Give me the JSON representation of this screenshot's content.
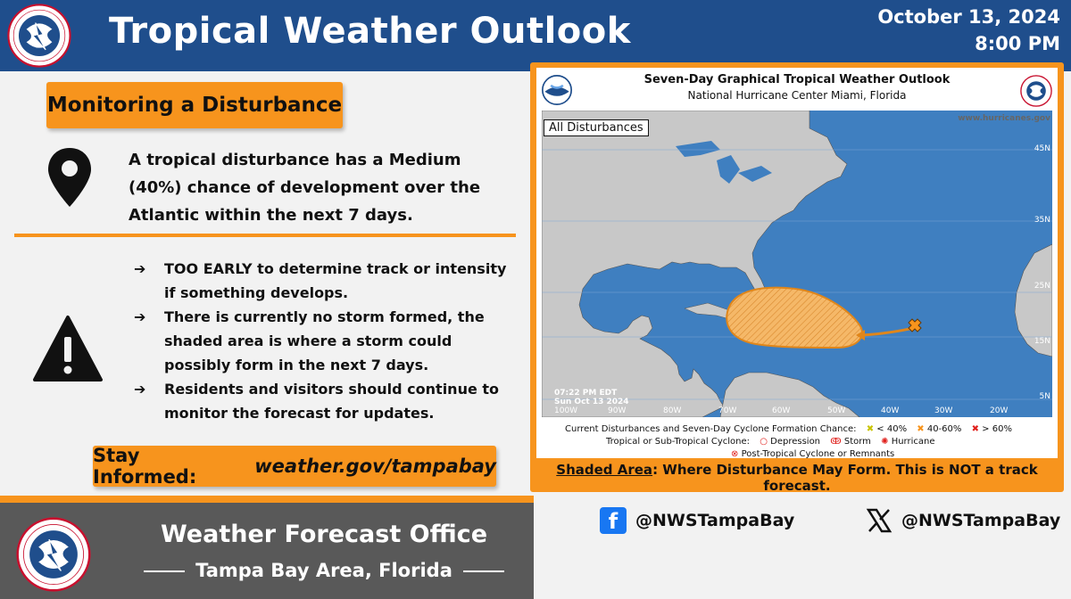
{
  "header": {
    "title": "Tropical Weather Outlook",
    "date": "October 13, 2024",
    "time": "8:00 PM",
    "logo_icon": "nws-logo-icon"
  },
  "left": {
    "badge": "Monitoring a Disturbance",
    "summary": "A tropical disturbance has a Medium (40%) chance of development over the Atlantic within the next 7 days.",
    "bullets": [
      "TOO EARLY to determine track or intensity if something develops.",
      "There is currently no storm formed, the shaded area is where a storm could possibly form in the next 7 days.",
      "Residents and visitors should continue to monitor the forecast for updates."
    ],
    "arrow": "➔",
    "stay_label": "Stay Informed:",
    "stay_link": "weather.gov/tampabay"
  },
  "map": {
    "title": "Seven-Day Graphical Tropical Weather Outlook",
    "subtitle": "National Hurricane Center  Miami, Florida",
    "box_label": "All Disturbances",
    "website": "www.hurricanes.gov",
    "timestamp_line1": "07:22 PM EDT",
    "timestamp_line2": "Sun Oct 13 2024",
    "lat_labels": [
      "45N",
      "35N",
      "25N",
      "15N",
      "5N"
    ],
    "lon_labels": [
      "100W",
      "90W",
      "80W",
      "70W",
      "60W",
      "50W",
      "40W",
      "30W",
      "20W"
    ],
    "legend_row1_label": "Current Disturbances and Seven-Day Cyclone Formation Chance:",
    "legend_low": "< 40%",
    "legend_mid": "40-60%",
    "legend_high": "> 60%",
    "legend_row2_label": "Tropical or Sub-Tropical Cyclone:",
    "legend_depression": "Depression",
    "legend_storm": "Storm",
    "legend_hurricane": "Hurricane",
    "legend_post": "Post-Tropical Cyclone or Remnants",
    "note_lead": "Shaded Area",
    "note_rest": ": Where Disturbance May Form. This is NOT a track forecast.",
    "colors": {
      "ocean": "#3f7fc0",
      "land": "#c8c8c8",
      "shade": "#f7a84a",
      "yellow": "#ffff00",
      "orange": "#f7941d",
      "red": "#e0201c"
    }
  },
  "social": {
    "facebook": "@NWSTampaBay",
    "x": "@NWSTampaBay",
    "facebook_glyph": "f"
  },
  "footer": {
    "title": "Weather Forecast Office",
    "subtitle": "Tampa Bay Area, Florida"
  },
  "colors": {
    "header_blue": "#1f4e8c",
    "accent_orange": "#f7941d",
    "footer_gray": "#595959"
  }
}
